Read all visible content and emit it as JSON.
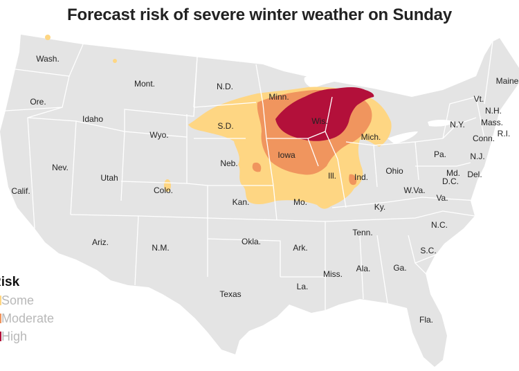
{
  "title": "Forecast risk of severe winter weather on Sunday",
  "legend": {
    "title": "Risk",
    "items": [
      {
        "label": "Some",
        "color": "#fed683"
      },
      {
        "label": "Moderate",
        "color": "#f0955e"
      },
      {
        "label": "High",
        "color": "#b3103a"
      }
    ]
  },
  "colors": {
    "land": "#e4e4e4",
    "border": "#ffffff",
    "lake": "#ffffff"
  },
  "states": {
    "wash": "Wash.",
    "ore": "Ore.",
    "calif": "Calif.",
    "idaho": "Idaho",
    "nev": "Nev.",
    "mont": "Mont.",
    "wyo": "Wyo.",
    "utah": "Utah",
    "ariz": "Ariz.",
    "colo": "Colo.",
    "nm": "N.M.",
    "nd": "N.D.",
    "sd": "S.D.",
    "neb": "Neb.",
    "kan": "Kan.",
    "okla": "Okla.",
    "texas": "Texas",
    "minn": "Minn.",
    "iowa": "Iowa",
    "mo": "Mo.",
    "ark": "Ark.",
    "la": "La.",
    "wis": "Wis.",
    "ill": "Ill.",
    "mich": "Mich.",
    "ind": "Ind.",
    "ohio": "Ohio",
    "ky": "Ky.",
    "tenn": "Tenn.",
    "miss": "Miss.",
    "ala": "Ala.",
    "ga": "Ga.",
    "fla": "Fla.",
    "sc": "S.C.",
    "nc": "N.C.",
    "va": "Va.",
    "wva": "W.Va.",
    "pa": "Pa.",
    "ny": "N.Y.",
    "md": "Md.",
    "dc": "D.C.",
    "del": "Del.",
    "nj": "N.J.",
    "conn": "Conn.",
    "ri": "R.I.",
    "mass": "Mass.",
    "vt": "Vt.",
    "nh": "N.H.",
    "maine": "Maine"
  }
}
